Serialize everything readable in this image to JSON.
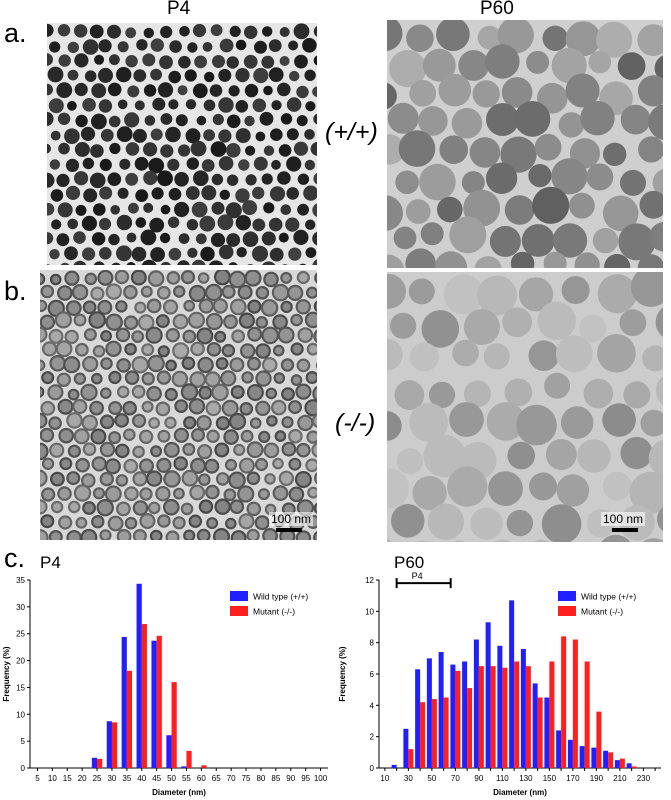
{
  "headers": {
    "left": "P4",
    "right": "P60"
  },
  "row_labels": {
    "a": "a.",
    "b": "b.",
    "c": "c."
  },
  "genotypes": {
    "wild": "(+/+)",
    "mutant": "(-/-)"
  },
  "scale_bar": "100 nm",
  "colors": {
    "wild": "#1f1fff",
    "mutant": "#ff1f1f"
  },
  "chart_data": [
    {
      "type": "bar",
      "title": "P4",
      "xlabel": "Diameter (nm)",
      "ylabel": "Frequency (%)",
      "ylim": [
        0,
        35
      ],
      "yticks": [
        0,
        5,
        10,
        15,
        20,
        25,
        30,
        35
      ],
      "categories": [
        "5",
        "10",
        "15",
        "20",
        "25",
        "30",
        "35",
        "40",
        "45",
        "50",
        "55",
        "60",
        "65",
        "70",
        "75",
        "80",
        "85",
        "90",
        "95",
        "100"
      ],
      "series": [
        {
          "name": "Wild type (+/+)",
          "values": [
            0,
            0,
            0,
            0,
            1.9,
            8.7,
            24.4,
            34.3,
            23.7,
            6.1,
            0.3,
            0,
            0,
            0,
            0,
            0,
            0,
            0,
            0,
            0
          ]
        },
        {
          "name": "Mutant (-/-)",
          "values": [
            0,
            0,
            0,
            0,
            1.7,
            8.5,
            18.1,
            26.8,
            24.6,
            16.0,
            3.2,
            0.5,
            0,
            0,
            0,
            0,
            0,
            0,
            0,
            0
          ]
        }
      ],
      "legend": "top-right"
    },
    {
      "type": "bar",
      "title": "P60",
      "xlabel": "Diameter (nm)",
      "ylabel": "Frequency (%)",
      "ylim": [
        0,
        12
      ],
      "yticks": [
        0,
        2,
        4,
        6,
        8,
        10,
        12
      ],
      "categories": [
        "10",
        "20",
        "30",
        "40",
        "50",
        "60",
        "70",
        "80",
        "90",
        "100",
        "110",
        "120",
        "130",
        "140",
        "150",
        "160",
        "170",
        "180",
        "190",
        "200",
        "210",
        "220",
        "230",
        "240"
      ],
      "tick_labels": [
        "10",
        "30",
        "50",
        "70",
        "90",
        "110",
        "130",
        "150",
        "170",
        "190",
        "210",
        "230"
      ],
      "series": [
        {
          "name": "Wild type (+/+)",
          "values": [
            0,
            0.2,
            2.5,
            6.3,
            7.0,
            7.4,
            6.6,
            6.8,
            8.2,
            9.3,
            7.8,
            10.7,
            7.6,
            5.4,
            4.5,
            2.4,
            1.8,
            1.4,
            1.3,
            1.1,
            0.5,
            0.3,
            0,
            0
          ]
        },
        {
          "name": "Mutant (-/-)",
          "values": [
            0,
            0,
            1.2,
            4.2,
            4.4,
            4.5,
            6.2,
            5.1,
            6.5,
            6.5,
            6.4,
            6.8,
            6.5,
            4.5,
            6.8,
            8.4,
            8.2,
            6.8,
            3.6,
            1.0,
            0.6,
            0.1,
            0,
            0
          ]
        }
      ],
      "annotation": "P4",
      "legend": "top-right"
    }
  ]
}
